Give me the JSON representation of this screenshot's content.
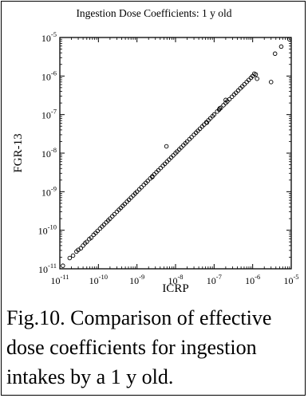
{
  "figure_caption": "Fig.10. Comparison of effective dose coefficients for ingestion intakes by a 1 y old.",
  "chart_data": {
    "type": "scatter",
    "title": "Ingestion Dose Coefficients: 1 y old",
    "xlabel": "ICRP",
    "ylabel": "FGR-13",
    "xscale": "log",
    "yscale": "log",
    "xlim": [
      1e-11,
      1e-05
    ],
    "ylim": [
      1e-11,
      1e-05
    ],
    "grid": false,
    "legend": "none",
    "ticks": [
      {
        "value": 1e-11,
        "base": "10",
        "exp": "-11"
      },
      {
        "value": 1e-10,
        "base": "10",
        "exp": "-10"
      },
      {
        "value": 1e-09,
        "base": "10",
        "exp": "-9"
      },
      {
        "value": 1e-08,
        "base": "10",
        "exp": "-8"
      },
      {
        "value": 1e-07,
        "base": "10",
        "exp": "-7"
      },
      {
        "value": 1e-06,
        "base": "10",
        "exp": "-6"
      },
      {
        "value": 1e-05,
        "base": "10",
        "exp": "-5"
      }
    ],
    "points": [
      [
        1.2e-11,
        1.2e-11
      ],
      [
        1.8e-11,
        1.9e-11
      ],
      [
        2.2e-11,
        2.2e-11
      ],
      [
        2.7e-11,
        2.8e-11
      ],
      [
        3e-11,
        3.1e-11
      ],
      [
        3.5e-11,
        3.4e-11
      ],
      [
        4e-11,
        4e-11
      ],
      [
        4.5e-11,
        4.6e-11
      ],
      [
        5e-11,
        5e-11
      ],
      [
        5.8e-11,
        5.9e-11
      ],
      [
        6.5e-11,
        6.4e-11
      ],
      [
        7.5e-11,
        7.6e-11
      ],
      [
        8.5e-11,
        8.5e-11
      ],
      [
        9.5e-11,
        9.6e-11
      ],
      [
        1.1e-10,
        1.1e-10
      ],
      [
        1.25e-10,
        1.25e-10
      ],
      [
        1.4e-10,
        1.4e-10
      ],
      [
        1.6e-10,
        1.6e-10
      ],
      [
        1.8e-10,
        1.8e-10
      ],
      [
        2e-10,
        2e-10
      ],
      [
        2.3e-10,
        2.3e-10
      ],
      [
        2.6e-10,
        2.6e-10
      ],
      [
        3e-10,
        3e-10
      ],
      [
        3.4e-10,
        3.4e-10
      ],
      [
        3.8e-10,
        3.8e-10
      ],
      [
        4.3e-10,
        4.3e-10
      ],
      [
        4.8e-10,
        4.8e-10
      ],
      [
        5.5e-10,
        5.5e-10
      ],
      [
        6.2e-10,
        6.2e-10
      ],
      [
        7e-10,
        7e-10
      ],
      [
        8e-10,
        8e-10
      ],
      [
        9e-10,
        9e-10
      ],
      [
        1e-09,
        1e-09
      ],
      [
        1.15e-09,
        1.15e-09
      ],
      [
        1.3e-09,
        1.3e-09
      ],
      [
        1.5e-09,
        1.5e-09
      ],
      [
        1.7e-09,
        1.7e-09
      ],
      [
        1.9e-09,
        1.9e-09
      ],
      [
        2.2e-09,
        2.2e-09
      ],
      [
        2.5e-09,
        2.5e-09
      ],
      [
        2.8e-09,
        2.8e-09
      ],
      [
        3.2e-09,
        3.2e-09
      ],
      [
        3.6e-09,
        3.6e-09
      ],
      [
        4.1e-09,
        4.1e-09
      ],
      [
        4.7e-09,
        4.7e-09
      ],
      [
        5.3e-09,
        5.3e-09
      ],
      [
        6e-09,
        6e-09
      ],
      [
        6.8e-09,
        6.8e-09
      ],
      [
        7.7e-09,
        7.7e-09
      ],
      [
        8.7e-09,
        8.7e-09
      ],
      [
        1e-08,
        1e-08
      ],
      [
        1.1e-08,
        1.1e-08
      ],
      [
        1.25e-08,
        1.25e-08
      ],
      [
        1.4e-08,
        1.4e-08
      ],
      [
        1.6e-08,
        1.6e-08
      ],
      [
        1.8e-08,
        1.8e-08
      ],
      [
        2e-08,
        2e-08
      ],
      [
        2.3e-08,
        2.3e-08
      ],
      [
        2.6e-08,
        2.6e-08
      ],
      [
        3e-08,
        3e-08
      ],
      [
        3.4e-08,
        3.4e-08
      ],
      [
        3.8e-08,
        3.8e-08
      ],
      [
        4.3e-08,
        4.3e-08
      ],
      [
        4.9e-08,
        4.9e-08
      ],
      [
        5.5e-08,
        5.5e-08
      ],
      [
        6.3e-08,
        6.3e-08
      ],
      [
        7.1e-08,
        7.1e-08
      ],
      [
        8e-08,
        8e-08
      ],
      [
        9.1e-08,
        9.1e-08
      ],
      [
        1e-07,
        1e-07
      ],
      [
        1.2e-07,
        1.2e-07
      ],
      [
        1.35e-07,
        1.35e-07
      ],
      [
        1.5e-07,
        1.5e-07
      ],
      [
        1.75e-07,
        1.75e-07
      ],
      [
        2e-07,
        2e-07
      ],
      [
        2.2e-07,
        2.2e-07
      ],
      [
        2.5e-07,
        2.5e-07
      ],
      [
        2.9e-07,
        2.9e-07
      ],
      [
        3.3e-07,
        3.3e-07
      ],
      [
        3.7e-07,
        3.7e-07
      ],
      [
        4.2e-07,
        4.2e-07
      ],
      [
        4.8e-07,
        4.8e-07
      ],
      [
        5.4e-07,
        5.4e-07
      ],
      [
        6.1e-07,
        6.1e-07
      ],
      [
        7e-07,
        7e-07
      ],
      [
        7.9e-07,
        7.9e-07
      ],
      [
        9e-07,
        9e-07
      ],
      [
        1e-06,
        1e-06
      ],
      [
        1.1e-06,
        1.15e-06
      ],
      [
        1.2e-06,
        1.1e-06
      ],
      [
        5.8e-09,
        1.5e-08
      ],
      [
        2e-07,
        2.4e-07
      ],
      [
        1.3e-06,
        8.5e-07
      ],
      [
        3e-06,
        7e-07
      ],
      [
        3.8e-06,
        3.8e-06
      ],
      [
        5.5e-06,
        5.8e-06
      ],
      [
        9e-06,
        9e-06
      ],
      [
        2.5e-09,
        2.4e-09
      ],
      [
        6.5e-08,
        6.2e-08
      ],
      [
        1.4e-07,
        1.45e-07
      ]
    ]
  }
}
